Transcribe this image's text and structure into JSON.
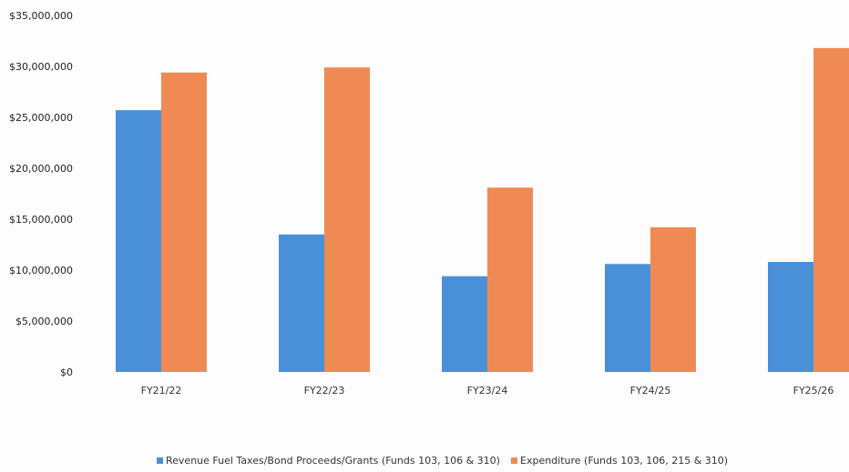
{
  "chart_data": {
    "type": "bar",
    "title": "",
    "xlabel": "",
    "ylabel": "",
    "ylim": [
      0,
      35000000
    ],
    "yticks": [
      0,
      5000000,
      10000000,
      15000000,
      20000000,
      25000000,
      30000000,
      35000000
    ],
    "ytick_labels": [
      "$0",
      "$5,000,000",
      "$10,000,000",
      "$15,000,000",
      "$20,000,000",
      "$25,000,000",
      "$30,000,000",
      "$35,000,000"
    ],
    "categories": [
      "FY21/22",
      "FY22/23",
      "FY23/24",
      "FY24/25",
      "FY25/26"
    ],
    "series": [
      {
        "name": "Revenue Fuel Taxes/Bond Proceeds/Grants (Funds 103, 106 & 310)",
        "color": "#4a90d9",
        "values": [
          25700000,
          13500000,
          9400000,
          10600000,
          10800000
        ]
      },
      {
        "name": "Expenditure (Funds 103, 106, 215 & 310)",
        "color": "#f08a55",
        "values": [
          29400000,
          29900000,
          18100000,
          14200000,
          31800000
        ]
      }
    ],
    "grid": false,
    "legend": "bottom"
  }
}
